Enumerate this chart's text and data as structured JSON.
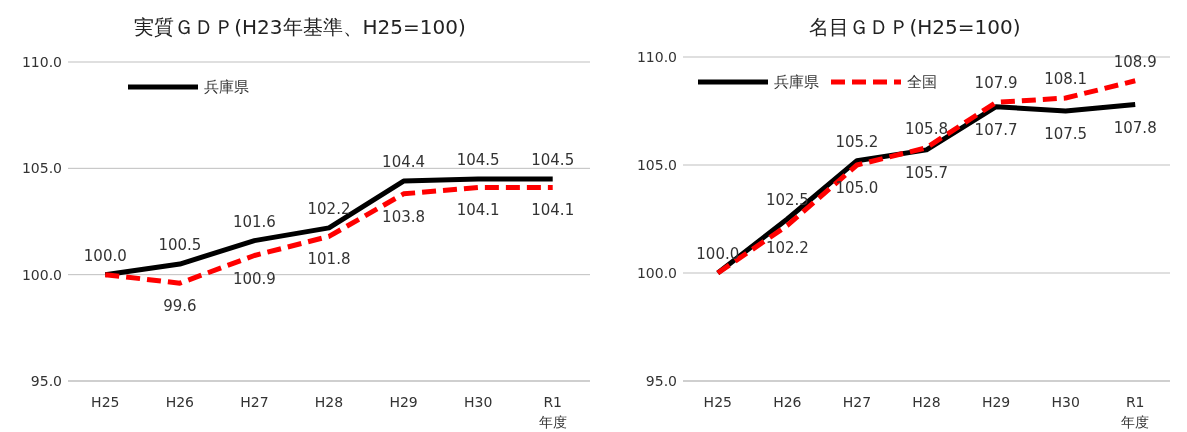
{
  "chart_data": [
    {
      "type": "line",
      "title": "実質ＧＤＰ(H23年基準、H25=100)",
      "categories": [
        "H25",
        "H26",
        "H27",
        "H28",
        "H29",
        "H30",
        "R1"
      ],
      "xlabel": "年度",
      "series": [
        {
          "name": "兵庫県",
          "color": "#000000",
          "values": [
            100.0,
            100.5,
            101.6,
            102.2,
            104.4,
            104.5,
            104.5
          ],
          "value_labels": [
            "100.0",
            "100.5",
            "101.6",
            "102.2",
            "104.4",
            "104.5",
            "104.5"
          ],
          "line_style": "solid"
        },
        {
          "color": "#ff0000",
          "values": [
            100.0,
            99.6,
            100.9,
            101.8,
            103.8,
            104.1,
            104.1
          ],
          "value_labels": [
            null,
            "99.6",
            "100.9",
            "101.8",
            "103.8",
            "104.1",
            "104.1"
          ],
          "line_style": "dashed"
        }
      ],
      "ylim": [
        95,
        110
      ],
      "yticks": [
        {
          "value": 95,
          "label": "95.0"
        },
        {
          "value": 100,
          "label": "100.0"
        },
        {
          "value": 105,
          "label": "105.0"
        },
        {
          "value": 110,
          "label": "110.0"
        }
      ],
      "grid": "y",
      "legend": "top left",
      "marker": "none"
    },
    {
      "type": "line",
      "title": "名目ＧＤＰ(H25=100)",
      "categories": [
        "H25",
        "H26",
        "H27",
        "H28",
        "H29",
        "H30",
        "R1"
      ],
      "xlabel": "年度",
      "series": [
        {
          "name": "兵庫県",
          "color": "#000000",
          "values": [
            100.0,
            102.5,
            105.2,
            105.7,
            107.7,
            107.5,
            107.8
          ],
          "value_labels": [
            "100.0",
            "102.5",
            "105.2",
            "105.7",
            "107.7",
            "107.5",
            "107.8"
          ],
          "line_style": "solid"
        },
        {
          "name": "全国",
          "color": "#ff0000",
          "values": [
            100.0,
            102.2,
            105.0,
            105.8,
            107.9,
            108.1,
            108.9
          ],
          "value_labels": [
            null,
            "102.2",
            "105.0",
            "105.8",
            "107.9",
            "108.1",
            "108.9"
          ],
          "line_style": "dashed"
        }
      ],
      "ylim": [
        95,
        110
      ],
      "yticks": [
        {
          "value": 95,
          "label": "95.0"
        },
        {
          "value": 100,
          "label": "100.0"
        },
        {
          "value": 105,
          "label": "105.0"
        },
        {
          "value": 110,
          "label": "110.0"
        }
      ],
      "grid": "y",
      "legend": "top left",
      "marker": "none"
    }
  ]
}
